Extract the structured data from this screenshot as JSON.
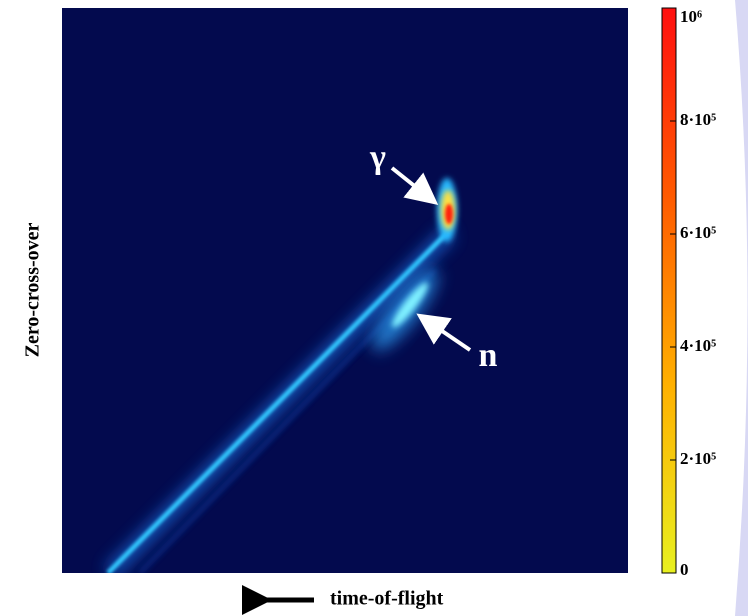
{
  "chart_data": {
    "type": "heatmap",
    "x_label": "time-of-flight",
    "y_label": "Zero-cross-over",
    "annotations": [
      "γ",
      "n"
    ],
    "clim": [
      0,
      1000000
    ],
    "cticks": [
      0,
      {
        "value": 200000,
        "label": "2·10⁵"
      },
      {
        "value": 400000,
        "label": "4·10⁵"
      },
      {
        "value": 600000,
        "label": "6·10⁵"
      },
      {
        "value": 800000,
        "label": "8·10⁵"
      },
      {
        "value": 1000000,
        "label": "10⁶"
      }
    ],
    "colormap": [
      "#e8f020",
      "#ffb000",
      "#ff5a00",
      "#ff1010"
    ],
    "background": "#030a4e"
  }
}
